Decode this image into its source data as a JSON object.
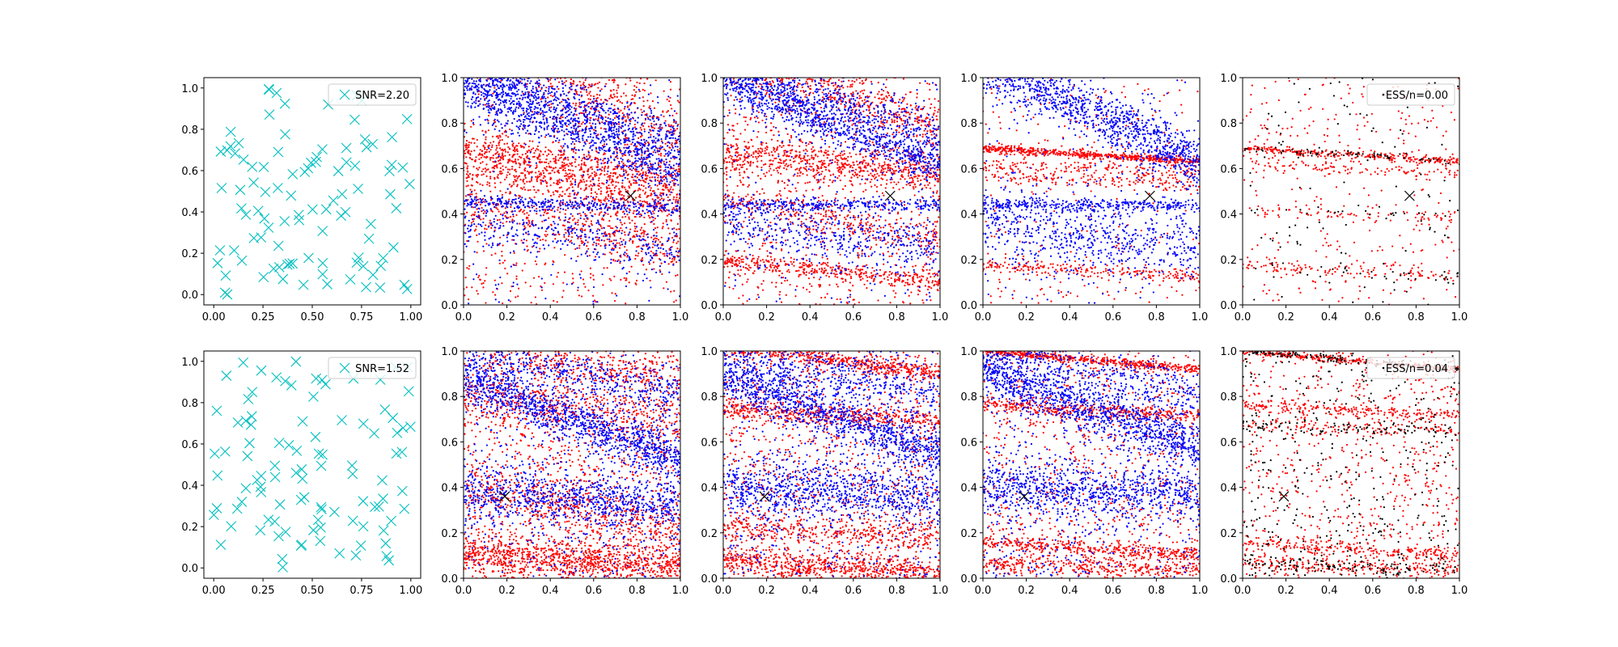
{
  "figure": {
    "width": 2000,
    "height": 800,
    "layout": "2 rows x 5 columns",
    "background": "#ffffff"
  },
  "colors": {
    "cyan": "#00bfbf",
    "red": "#ff0000",
    "blue": "#0000ff",
    "black": "#000000"
  },
  "chart_data": [
    {
      "type": "scatter",
      "row": 0,
      "col": 0,
      "xlim": [
        -0.05,
        1.05
      ],
      "ylim": [
        -0.05,
        1.05
      ],
      "xticks": [
        "0.00",
        "0.25",
        "0.50",
        "0.75",
        "1.00"
      ],
      "xtick_values": [
        0,
        0.25,
        0.5,
        0.75,
        1
      ],
      "yticks": [
        "0.0",
        "0.2",
        "0.4",
        "0.6",
        "0.8",
        "1.0"
      ],
      "ytick_values": [
        0,
        0.2,
        0.4,
        0.6,
        0.8,
        1
      ],
      "legend": {
        "label": "SNR=2.20",
        "loc": "upper right",
        "marker": "x",
        "color": "#00bfbf"
      },
      "series": [
        {
          "marker": "x",
          "color": "#00bfbf",
          "count": 100,
          "distribution": "uniform",
          "seed": 11
        }
      ]
    },
    {
      "type": "scatter",
      "row": 0,
      "col": 1,
      "xlim": [
        0,
        1
      ],
      "ylim": [
        0,
        1
      ],
      "xticks": [
        "0.0",
        "0.2",
        "0.4",
        "0.6",
        "0.8",
        "1.0"
      ],
      "xtick_values": [
        0,
        0.2,
        0.4,
        0.6,
        0.8,
        1
      ],
      "yticks": [
        "0.0",
        "0.2",
        "0.4",
        "0.6",
        "0.8",
        "1.0"
      ],
      "ytick_values": [
        0,
        0.2,
        0.4,
        0.6,
        0.8,
        1
      ],
      "true_point": [
        0.77,
        0.48
      ],
      "series": [
        {
          "name": "",
          "color": "#ff0000",
          "count": 2600,
          "seed": 21,
          "bands": [
            [
              0.52,
              -0.2,
              0.05,
              0.3
            ],
            [
              0.98,
              -0.55,
              0.1,
              0.35
            ],
            [
              0.62,
              -0.15,
              0.04,
              0.3
            ],
            [
              0.34,
              -0.2,
              0.05,
              0.2
            ]
          ],
          "uniform_frac": 0.25
        },
        {
          "name": "",
          "color": "#0000ff",
          "count": 2400,
          "seed": 31,
          "bands": [
            [
              0.78,
              -0.38,
              0.06,
              0.45
            ],
            [
              0.44,
              -0.03,
              0.015,
              0.15
            ],
            [
              0.88,
              -0.3,
              0.05,
              0.25
            ],
            [
              0.3,
              -0.15,
              0.05,
              0.15
            ]
          ],
          "uniform_frac": 0.1
        }
      ]
    },
    {
      "type": "scatter",
      "row": 0,
      "col": 2,
      "xlim": [
        0,
        1
      ],
      "ylim": [
        0,
        1
      ],
      "xticks": [
        "0.0",
        "0.2",
        "0.4",
        "0.6",
        "0.8",
        "1.0"
      ],
      "xtick_values": [
        0,
        0.2,
        0.4,
        0.6,
        0.8,
        1
      ],
      "yticks": [
        "0.0",
        "0.2",
        "0.4",
        "0.6",
        "0.8",
        "1.0"
      ],
      "ytick_values": [
        0,
        0.2,
        0.4,
        0.6,
        0.8,
        1
      ],
      "true_point": [
        0.77,
        0.48
      ],
      "series": [
        {
          "name": "",
          "color": "#ff0000",
          "count": 2600,
          "seed": 22,
          "bands": [
            [
              0.62,
              -0.1,
              0.04,
              0.35
            ],
            [
              0.95,
              -0.3,
              0.06,
              0.3
            ],
            [
              0.15,
              -0.1,
              0.02,
              0.2
            ],
            [
              0.38,
              -0.2,
              0.04,
              0.15
            ]
          ],
          "uniform_frac": 0.25
        },
        {
          "name": "",
          "color": "#0000ff",
          "count": 2400,
          "seed": 32,
          "bands": [
            [
              0.8,
              -0.38,
              0.05,
              0.45
            ],
            [
              0.44,
              0.0,
              0.015,
              0.15
            ],
            [
              0.9,
              -0.3,
              0.05,
              0.2
            ],
            [
              0.3,
              -0.1,
              0.06,
              0.2
            ]
          ],
          "uniform_frac": 0.1
        }
      ]
    },
    {
      "type": "scatter",
      "row": 0,
      "col": 3,
      "xlim": [
        0,
        1
      ],
      "ylim": [
        0,
        1
      ],
      "xticks": [
        "0.0",
        "0.2",
        "0.4",
        "0.6",
        "0.8",
        "1.0"
      ],
      "xtick_values": [
        0,
        0.2,
        0.4,
        0.6,
        0.8,
        1
      ],
      "yticks": [
        "0.0",
        "0.2",
        "0.4",
        "0.6",
        "0.8",
        "1.0"
      ],
      "ytick_values": [
        0,
        0.2,
        0.4,
        0.6,
        0.8,
        1
      ],
      "true_point": [
        0.77,
        0.48
      ],
      "series": [
        {
          "name": "",
          "color": "#ff0000",
          "count": 1400,
          "seed": 23,
          "bands": [
            [
              0.66,
              -0.06,
              0.008,
              0.4
            ],
            [
              0.6,
              -0.05,
              0.015,
              0.1
            ],
            [
              0.15,
              -0.05,
              0.015,
              0.15
            ],
            [
              0.55,
              -0.05,
              0.015,
              0.1
            ]
          ],
          "uniform_frac": 0.2
        },
        {
          "name": "",
          "color": "#0000ff",
          "count": 2300,
          "seed": 33,
          "bands": [
            [
              0.85,
              -0.45,
              0.06,
              0.5
            ],
            [
              0.44,
              0.0,
              0.015,
              0.15
            ],
            [
              0.3,
              -0.1,
              0.07,
              0.25
            ]
          ],
          "uniform_frac": 0.1
        }
      ]
    },
    {
      "type": "scatter",
      "row": 0,
      "col": 4,
      "xlim": [
        0,
        1
      ],
      "ylim": [
        0,
        1
      ],
      "xticks": [
        "0.0",
        "0.2",
        "0.4",
        "0.6",
        "0.8",
        "1.0"
      ],
      "xtick_values": [
        0,
        0.2,
        0.4,
        0.6,
        0.8,
        1
      ],
      "yticks": [
        "0.0",
        "0.2",
        "0.4",
        "0.6",
        "0.8",
        "1.0"
      ],
      "ytick_values": [
        0,
        0.2,
        0.4,
        0.6,
        0.8,
        1
      ],
      "true_point": [
        0.77,
        0.48
      ],
      "legend": {
        "label": "ESS/n=0.00",
        "loc": "upper right",
        "marker": "dot",
        "color": "#000000"
      },
      "series": [
        {
          "name": "",
          "color": "#ff0000",
          "count": 900,
          "seed": 24,
          "bands": [
            [
              0.66,
              -0.06,
              0.008,
              0.4
            ],
            [
              0.6,
              -0.05,
              0.015,
              0.15
            ],
            [
              0.15,
              -0.05,
              0.015,
              0.15
            ],
            [
              0.4,
              -0.03,
              0.015,
              0.1
            ]
          ],
          "uniform_frac": 0.35
        },
        {
          "name": "",
          "color": "#000000",
          "count": 220,
          "seed": 44,
          "bands": [
            [
              0.66,
              -0.06,
              0.008,
              0.3
            ],
            [
              0.15,
              -0.05,
              0.015,
              0.15
            ],
            [
              0.4,
              -0.03,
              0.015,
              0.1
            ]
          ],
          "uniform_frac": 0.45
        }
      ]
    },
    {
      "type": "scatter",
      "row": 1,
      "col": 0,
      "xlim": [
        -0.05,
        1.05
      ],
      "ylim": [
        -0.05,
        1.05
      ],
      "xticks": [
        "0.00",
        "0.25",
        "0.50",
        "0.75",
        "1.00"
      ],
      "xtick_values": [
        0,
        0.25,
        0.5,
        0.75,
        1
      ],
      "yticks": [
        "0.0",
        "0.2",
        "0.4",
        "0.6",
        "0.8",
        "1.0"
      ],
      "ytick_values": [
        0,
        0.2,
        0.4,
        0.6,
        0.8,
        1
      ],
      "legend": {
        "label": "SNR=1.52",
        "loc": "upper right",
        "marker": "x",
        "color": "#00bfbf"
      },
      "series": [
        {
          "marker": "x",
          "color": "#00bfbf",
          "count": 100,
          "distribution": "uniform",
          "seed": 12
        }
      ]
    },
    {
      "type": "scatter",
      "row": 1,
      "col": 1,
      "xlim": [
        0,
        1
      ],
      "ylim": [
        0,
        1
      ],
      "xticks": [
        "0.0",
        "0.2",
        "0.4",
        "0.6",
        "0.8",
        "1.0"
      ],
      "xtick_values": [
        0,
        0.2,
        0.4,
        0.6,
        0.8,
        1
      ],
      "yticks": [
        "0.0",
        "0.2",
        "0.4",
        "0.6",
        "0.8",
        "1.0"
      ],
      "ytick_values": [
        0,
        0.2,
        0.4,
        0.6,
        0.8,
        1
      ],
      "true_point": [
        0.19,
        0.36
      ],
      "series": [
        {
          "name": "",
          "color": "#ff0000",
          "count": 3200,
          "seed": 51,
          "bands": [
            [
              0.08,
              -0.05,
              0.04,
              0.35
            ],
            [
              0.75,
              -0.1,
              0.05,
              0.15
            ],
            [
              0.3,
              -0.2,
              0.05,
              0.15
            ],
            [
              0.95,
              -0.15,
              0.04,
              0.1
            ]
          ],
          "uniform_frac": 0.4
        },
        {
          "name": "",
          "color": "#0000ff",
          "count": 2800,
          "seed": 61,
          "bands": [
            [
              0.7,
              -0.35,
              0.05,
              0.4
            ],
            [
              0.35,
              -0.05,
              0.06,
              0.3
            ],
            [
              0.9,
              -0.2,
              0.05,
              0.15
            ]
          ],
          "uniform_frac": 0.2
        }
      ]
    },
    {
      "type": "scatter",
      "row": 1,
      "col": 2,
      "xlim": [
        0,
        1
      ],
      "ylim": [
        0,
        1
      ],
      "xticks": [
        "0.0",
        "0.2",
        "0.4",
        "0.6",
        "0.8",
        "1.0"
      ],
      "xtick_values": [
        0,
        0.2,
        0.4,
        0.6,
        0.8,
        1
      ],
      "yticks": [
        "0.0",
        "0.2",
        "0.4",
        "0.6",
        "0.8",
        "1.0"
      ],
      "ytick_values": [
        0,
        0.2,
        0.4,
        0.6,
        0.8,
        1
      ],
      "true_point": [
        0.19,
        0.36
      ],
      "series": [
        {
          "name": "",
          "color": "#ff0000",
          "count": 3000,
          "seed": 52,
          "bands": [
            [
              0.96,
              -0.12,
              0.02,
              0.25
            ],
            [
              0.72,
              -0.05,
              0.02,
              0.2
            ],
            [
              0.05,
              -0.05,
              0.03,
              0.3
            ],
            [
              0.2,
              -0.05,
              0.03,
              0.15
            ]
          ],
          "uniform_frac": 0.35
        },
        {
          "name": "",
          "color": "#0000ff",
          "count": 2800,
          "seed": 62,
          "bands": [
            [
              0.72,
              -0.35,
              0.05,
              0.4
            ],
            [
              0.38,
              -0.05,
              0.06,
              0.3
            ],
            [
              0.9,
              -0.2,
              0.05,
              0.15
            ]
          ],
          "uniform_frac": 0.2
        }
      ]
    },
    {
      "type": "scatter",
      "row": 1,
      "col": 3,
      "xlim": [
        0,
        1
      ],
      "ylim": [
        0,
        1
      ],
      "xticks": [
        "0.0",
        "0.2",
        "0.4",
        "0.6",
        "0.8",
        "1.0"
      ],
      "xtick_values": [
        0,
        0.2,
        0.4,
        0.6,
        0.8,
        1
      ],
      "yticks": [
        "0.0",
        "0.2",
        "0.4",
        "0.6",
        "0.8",
        "1.0"
      ],
      "ytick_values": [
        0,
        0.2,
        0.4,
        0.6,
        0.8,
        1
      ],
      "true_point": [
        0.19,
        0.36
      ],
      "series": [
        {
          "name": "",
          "color": "#ff0000",
          "count": 2400,
          "seed": 53,
          "bands": [
            [
              0.96,
              -0.08,
              0.008,
              0.3
            ],
            [
              0.74,
              -0.05,
              0.015,
              0.2
            ],
            [
              0.13,
              -0.05,
              0.015,
              0.2
            ],
            [
              0.05,
              -0.03,
              0.02,
              0.2
            ]
          ],
          "uniform_frac": 0.35
        },
        {
          "name": "",
          "color": "#0000ff",
          "count": 2800,
          "seed": 63,
          "bands": [
            [
              0.74,
              -0.35,
              0.05,
              0.4
            ],
            [
              0.38,
              -0.05,
              0.06,
              0.3
            ],
            [
              0.9,
              -0.2,
              0.05,
              0.15
            ]
          ],
          "uniform_frac": 0.2
        }
      ]
    },
    {
      "type": "scatter",
      "row": 1,
      "col": 4,
      "xlim": [
        0,
        1
      ],
      "ylim": [
        0,
        1
      ],
      "xticks": [
        "0.0",
        "0.2",
        "0.4",
        "0.6",
        "0.8",
        "1.0"
      ],
      "xtick_values": [
        0,
        0.2,
        0.4,
        0.6,
        0.8,
        1
      ],
      "yticks": [
        "0.0",
        "0.2",
        "0.4",
        "0.6",
        "0.8",
        "1.0"
      ],
      "ytick_values": [
        0,
        0.2,
        0.4,
        0.6,
        0.8,
        1
      ],
      "true_point": [
        0.19,
        0.36
      ],
      "legend": {
        "label": "ESS/n=0.04",
        "loc": "upper right",
        "marker": "dot",
        "color": "#000000"
      },
      "series": [
        {
          "name": "",
          "color": "#ff0000",
          "count": 1800,
          "seed": 54,
          "bands": [
            [
              0.96,
              -0.08,
              0.008,
              0.3
            ],
            [
              0.74,
              -0.05,
              0.015,
              0.2
            ],
            [
              0.13,
              -0.05,
              0.015,
              0.2
            ],
            [
              0.05,
              -0.03,
              0.02,
              0.2
            ],
            [
              0.66,
              -0.03,
              0.015,
              0.1
            ]
          ],
          "uniform_frac": 0.4
        },
        {
          "name": "",
          "color": "#000000",
          "count": 700,
          "seed": 64,
          "bands": [
            [
              0.96,
              -0.08,
              0.008,
              0.25
            ],
            [
              0.66,
              -0.03,
              0.015,
              0.15
            ],
            [
              0.05,
              -0.03,
              0.02,
              0.2
            ]
          ],
          "uniform_frac": 0.5
        }
      ]
    }
  ]
}
